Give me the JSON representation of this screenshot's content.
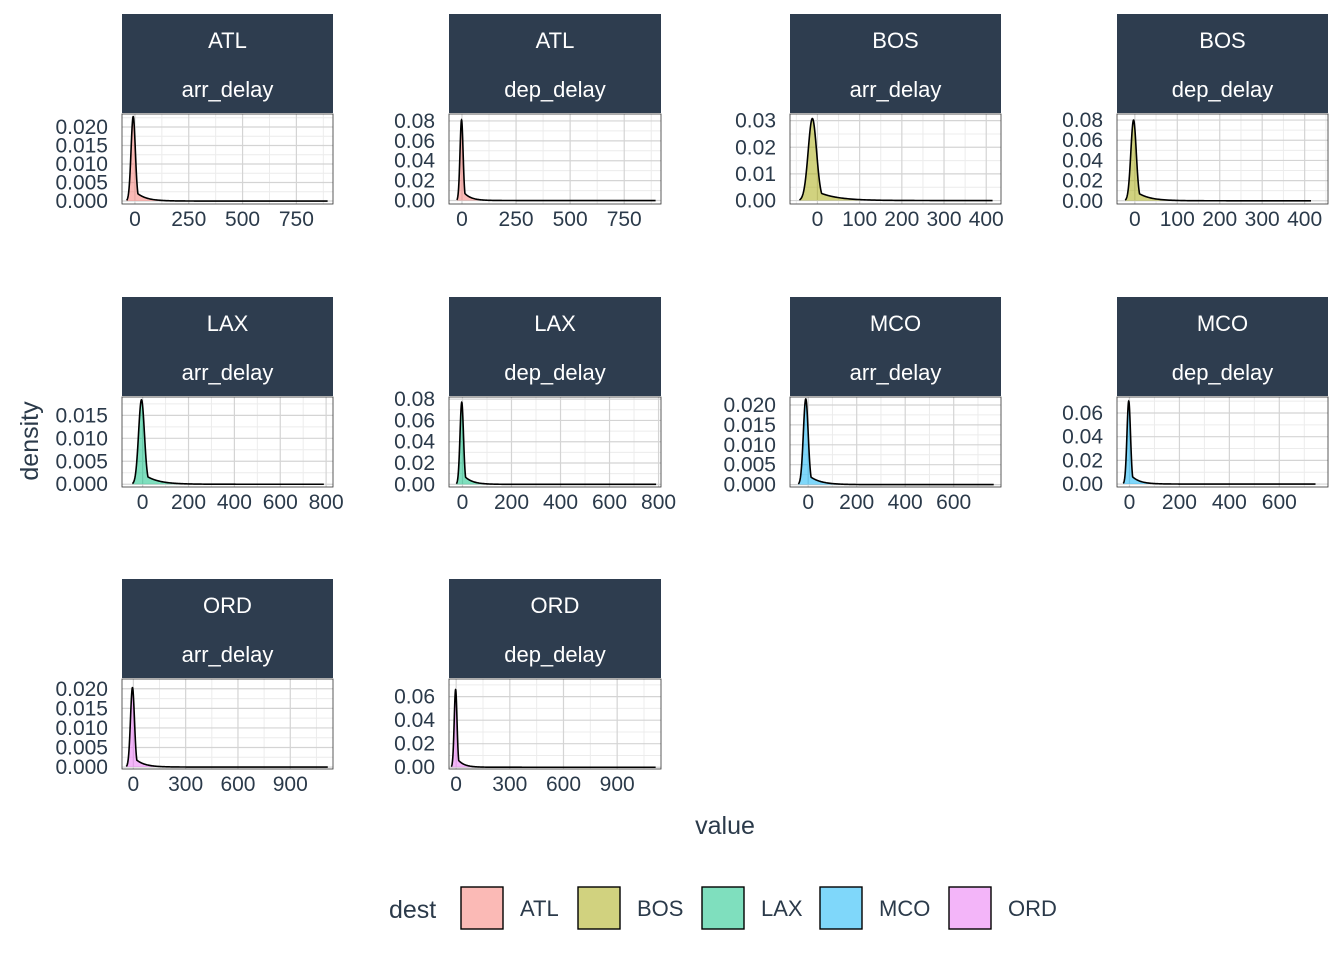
{
  "chart_data": {
    "type": "area",
    "facets": [
      {
        "dest": "ATL",
        "variable": "arr_delay",
        "fill": "#F8766D",
        "peak_x": -8,
        "peak_y": 0.0228,
        "peak_x2": null,
        "peak_y2": null,
        "spread": 14,
        "tail_to": 895,
        "x_ticks": [
          0,
          250,
          500,
          750
        ],
        "xlim": [
          -60,
          920
        ],
        "y_ticks": [
          0.0,
          0.005,
          0.01,
          0.015,
          0.02
        ],
        "y_tick_labels": [
          "0.000",
          "0.005",
          "0.010",
          "0.015",
          "0.020"
        ],
        "ylim": [
          -0.0008,
          0.0235
        ]
      },
      {
        "dest": "ATL",
        "variable": "dep_delay",
        "fill": "#F8766D",
        "peak_x": -2,
        "peak_y": 0.081,
        "peak_x2": 3,
        "peak_y2": 0.038,
        "spread": 10,
        "tail_to": 895,
        "x_ticks": [
          0,
          250,
          500,
          750
        ],
        "xlim": [
          -60,
          920
        ],
        "y_ticks": [
          0.0,
          0.02,
          0.04,
          0.06,
          0.08
        ],
        "y_tick_labels": [
          "0.00",
          "0.02",
          "0.04",
          "0.06",
          "0.08"
        ],
        "ylim": [
          -0.0035,
          0.087
        ]
      },
      {
        "dest": "BOS",
        "variable": "arr_delay",
        "fill": "#A3A500",
        "peak_x": -12,
        "peak_y": 0.0308,
        "peak_x2": null,
        "peak_y2": null,
        "spread": 14,
        "tail_to": 415,
        "x_ticks": [
          0,
          100,
          200,
          300,
          400
        ],
        "xlim": [
          -65,
          435
        ],
        "y_ticks": [
          0.0,
          0.01,
          0.02,
          0.03
        ],
        "y_tick_labels": [
          "0.00",
          "0.01",
          "0.02",
          "0.03"
        ],
        "ylim": [
          -0.0013,
          0.0325
        ]
      },
      {
        "dest": "BOS",
        "variable": "dep_delay",
        "fill": "#A3A500",
        "peak_x": -3,
        "peak_y": 0.08,
        "peak_x2": 2,
        "peak_y2": 0.04,
        "spread": 9,
        "tail_to": 415,
        "x_ticks": [
          0,
          100,
          200,
          300,
          400
        ],
        "xlim": [
          -42,
          455
        ],
        "y_ticks": [
          0.0,
          0.02,
          0.04,
          0.06,
          0.08
        ],
        "y_tick_labels": [
          "0.00",
          "0.02",
          "0.04",
          "0.06",
          "0.08"
        ],
        "ylim": [
          -0.0032,
          0.086
        ]
      },
      {
        "dest": "LAX",
        "variable": "arr_delay",
        "fill": "#00BF7D",
        "peak_x": -5,
        "peak_y": 0.0184,
        "peak_x2": null,
        "peak_y2": null,
        "spread": 18,
        "tail_to": 790,
        "x_ticks": [
          0,
          200,
          400,
          600,
          800
        ],
        "xlim": [
          -90,
          830
        ],
        "y_ticks": [
          0.0,
          0.005,
          0.01,
          0.015
        ],
        "y_tick_labels": [
          "0.000",
          "0.005",
          "0.010",
          "0.015"
        ],
        "ylim": [
          -0.0006,
          0.019
        ]
      },
      {
        "dest": "LAX",
        "variable": "dep_delay",
        "fill": "#00BF7D",
        "peak_x": -3,
        "peak_y": 0.077,
        "peak_x2": 2,
        "peak_y2": 0.035,
        "spread": 10,
        "tail_to": 790,
        "x_ticks": [
          0,
          200,
          400,
          600,
          800
        ],
        "xlim": [
          -55,
          810
        ],
        "y_ticks": [
          0.0,
          0.02,
          0.04,
          0.06,
          0.08
        ],
        "y_tick_labels": [
          "0.00",
          "0.02",
          "0.04",
          "0.06",
          "0.08"
        ],
        "ylim": [
          -0.0025,
          0.082
        ]
      },
      {
        "dest": "MCO",
        "variable": "arr_delay",
        "fill": "#00B0F6",
        "peak_x": -10,
        "peak_y": 0.0215,
        "peak_x2": null,
        "peak_y2": null,
        "spread": 14,
        "tail_to": 765,
        "x_ticks": [
          0,
          200,
          400,
          600
        ],
        "xlim": [
          -75,
          795
        ],
        "y_ticks": [
          0.0,
          0.005,
          0.01,
          0.015,
          0.02
        ],
        "y_tick_labels": [
          "0.000",
          "0.005",
          "0.010",
          "0.015",
          "0.020"
        ],
        "ylim": [
          -0.0006,
          0.022
        ]
      },
      {
        "dest": "MCO",
        "variable": "dep_delay",
        "fill": "#00B0F6",
        "peak_x": -3,
        "peak_y": 0.07,
        "peak_x2": 2,
        "peak_y2": 0.04,
        "spread": 10,
        "tail_to": 745,
        "x_ticks": [
          0,
          200,
          400,
          600
        ],
        "xlim": [
          -50,
          795
        ],
        "y_ticks": [
          0.0,
          0.02,
          0.04,
          0.06
        ],
        "y_tick_labels": [
          "0.00",
          "0.02",
          "0.04",
          "0.06"
        ],
        "ylim": [
          -0.0025,
          0.0735
        ]
      },
      {
        "dest": "ORD",
        "variable": "arr_delay",
        "fill": "#E76BF3",
        "peak_x": -5,
        "peak_y": 0.0203,
        "peak_x2": null,
        "peak_y2": null,
        "spread": 16,
        "tail_to": 1115,
        "x_ticks": [
          0,
          300,
          600,
          900
        ],
        "xlim": [
          -65,
          1145
        ],
        "y_ticks": [
          0.0,
          0.005,
          0.01,
          0.015,
          0.02
        ],
        "y_tick_labels": [
          "0.000",
          "0.005",
          "0.010",
          "0.015",
          "0.020"
        ],
        "ylim": [
          -0.0005,
          0.0225
        ]
      },
      {
        "dest": "ORD",
        "variable": "dep_delay",
        "fill": "#E76BF3",
        "peak_x": -3,
        "peak_y": 0.066,
        "peak_x2": 2,
        "peak_y2": 0.03,
        "spread": 11,
        "tail_to": 1115,
        "x_ticks": [
          0,
          300,
          600,
          900
        ],
        "xlim": [
          -40,
          1145
        ],
        "y_ticks": [
          0.0,
          0.02,
          0.04,
          0.06
        ],
        "y_tick_labels": [
          "0.00",
          "0.02",
          "0.04",
          "0.06"
        ],
        "ylim": [
          -0.0015,
          0.075
        ]
      }
    ],
    "xlabel": "value",
    "ylabel": "density",
    "legend": {
      "title": "dest",
      "position": "bottom",
      "entries": [
        {
          "label": "ATL",
          "color": "#F8766D"
        },
        {
          "label": "BOS",
          "color": "#A3A500"
        },
        {
          "label": "LAX",
          "color": "#00BF7D"
        },
        {
          "label": "MCO",
          "color": "#00B0F6"
        },
        {
          "label": "ORD",
          "color": "#E76BF3"
        }
      ]
    },
    "grid": true,
    "strip_color": "#2E3D4F"
  }
}
